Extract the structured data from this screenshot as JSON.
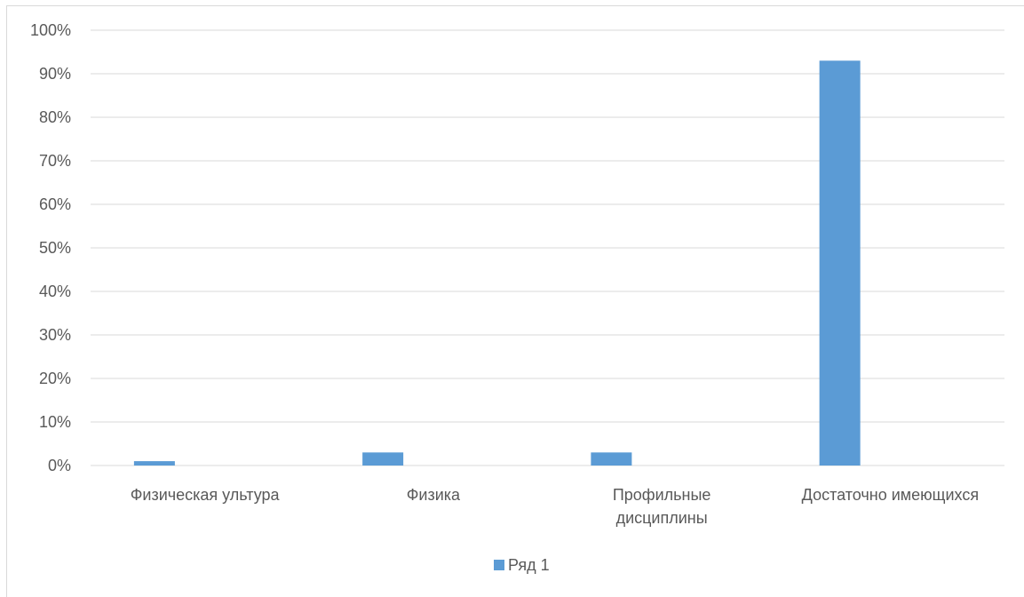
{
  "chart_data": {
    "type": "bar",
    "categories": [
      [
        "Физическая ультура"
      ],
      [
        "Физика"
      ],
      [
        "Профильные",
        "дисциплины"
      ],
      [
        "Достаточно имеющихся"
      ]
    ],
    "series": [
      {
        "name": "Ряд 1",
        "values": [
          1,
          3,
          3,
          93
        ],
        "color": "#5b9bd5"
      }
    ],
    "ylim": [
      0,
      100
    ],
    "yticks": [
      0,
      10,
      20,
      30,
      40,
      50,
      60,
      70,
      80,
      90,
      100
    ],
    "ytick_suffix": "%",
    "grid": true,
    "legend": "bottom-center"
  }
}
